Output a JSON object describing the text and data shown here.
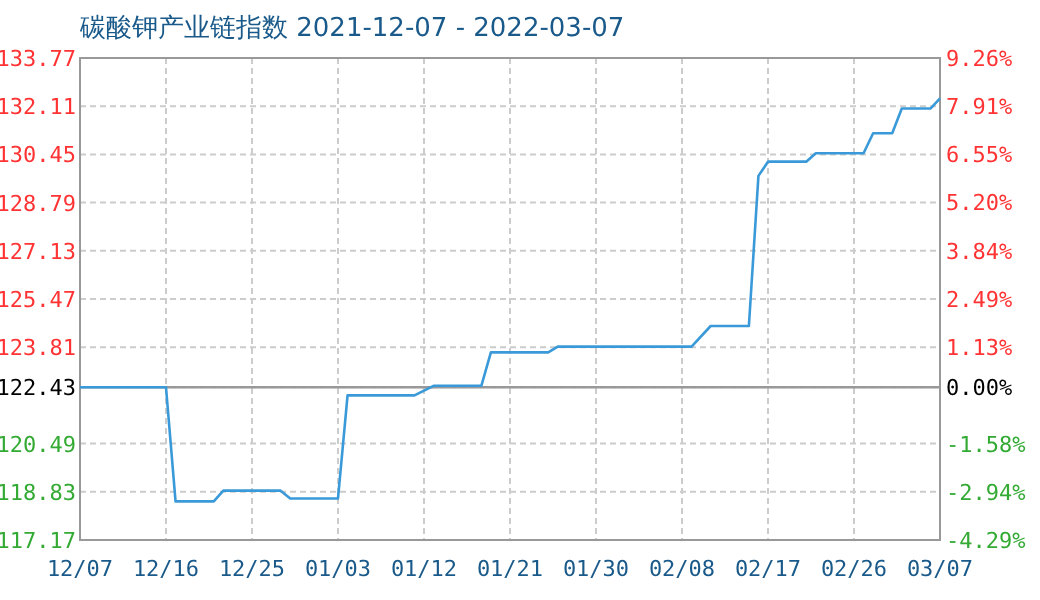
{
  "chart_data": {
    "type": "line",
    "title": "碳酸钾产业链指数 2021-12-07 - 2022-03-07",
    "x": [
      "2021-12-07",
      "2021-12-16",
      "2021-12-17",
      "2021-12-21",
      "2021-12-22",
      "2021-12-28",
      "2021-12-29",
      "2022-01-03",
      "2022-01-04",
      "2022-01-11",
      "2022-01-13",
      "2022-01-18",
      "2022-01-19",
      "2022-01-25",
      "2022-01-26",
      "2022-02-09",
      "2022-02-11",
      "2022-02-15",
      "2022-02-16",
      "2022-02-17",
      "2022-02-21",
      "2022-02-22",
      "2022-02-27",
      "2022-02-28",
      "2022-03-02",
      "2022-03-03",
      "2022-03-06",
      "2022-03-07"
    ],
    "series": [
      {
        "color": "#3a9ad9",
        "values": [
          122.43,
          122.43,
          118.5,
          118.5,
          118.87,
          118.87,
          118.6,
          118.6,
          122.15,
          122.15,
          122.48,
          122.48,
          123.63,
          123.63,
          123.83,
          123.83,
          124.54,
          124.54,
          129.71,
          130.2,
          130.2,
          130.49,
          130.49,
          131.18,
          131.18,
          132.03,
          132.03,
          132.38
        ]
      }
    ],
    "xlim": [
      "2021-12-07",
      "2022-03-07"
    ],
    "xticks": [
      {
        "value": "2021-12-07",
        "label": "12/07"
      },
      {
        "value": "2021-12-16",
        "label": "12/16"
      },
      {
        "value": "2021-12-25",
        "label": "12/25"
      },
      {
        "value": "2022-01-03",
        "label": "01/03"
      },
      {
        "value": "2022-01-12",
        "label": "01/12"
      },
      {
        "value": "2022-01-21",
        "label": "01/21"
      },
      {
        "value": "2022-01-30",
        "label": "01/30"
      },
      {
        "value": "2022-02-08",
        "label": "02/08"
      },
      {
        "value": "2022-02-17",
        "label": "02/17"
      },
      {
        "value": "2022-02-26",
        "label": "02/26"
      },
      {
        "value": "2022-03-07",
        "label": "03/07"
      }
    ],
    "ylim": [
      117.17,
      133.77
    ],
    "yticks": [
      117.17,
      118.83,
      120.49,
      122.43,
      123.81,
      125.47,
      127.13,
      128.79,
      130.45,
      132.11,
      133.77
    ],
    "y2lim": [
      -4.29,
      9.26
    ],
    "y2ticks": [
      {
        "value": -4.29,
        "label": "-4.29%"
      },
      {
        "value": -2.94,
        "label": "-2.94%"
      },
      {
        "value": -1.58,
        "label": "-1.58%"
      },
      {
        "value": 0,
        "label": "0.00%"
      },
      {
        "value": 1.13,
        "label": "1.13%"
      },
      {
        "value": 2.49,
        "label": "2.49%"
      },
      {
        "value": 3.84,
        "label": "3.84%"
      },
      {
        "value": 5.2,
        "label": "5.20%"
      },
      {
        "value": 6.55,
        "label": "6.55%"
      },
      {
        "value": 7.91,
        "label": "7.91%"
      },
      {
        "value": 9.26,
        "label": "9.26%"
      }
    ],
    "ref_lines": [
      {
        "axis": "y",
        "value": 122.43,
        "color": "#999999"
      }
    ],
    "grid": true
  }
}
